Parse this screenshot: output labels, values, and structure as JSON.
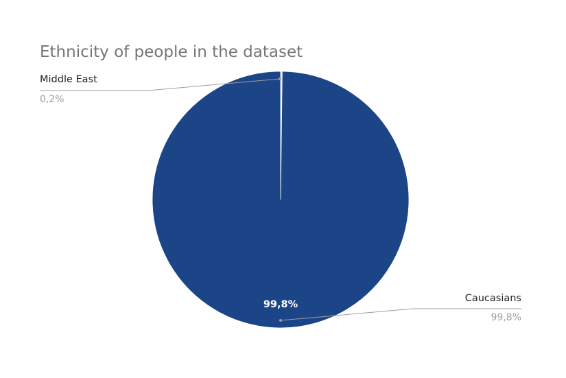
{
  "chart_data": {
    "type": "pie",
    "title": "Ethnicity of people in the dataset",
    "slices": [
      {
        "label": "Middle East",
        "value": 0.2,
        "display": "0,2%",
        "color": "#dfe6f2"
      },
      {
        "label": "Caucasians",
        "value": 99.8,
        "display": "99,8%",
        "color": "#1c4587"
      }
    ],
    "inner_label": "99,8%",
    "legend": "none",
    "label_style": "outside-with-leader-lines"
  }
}
